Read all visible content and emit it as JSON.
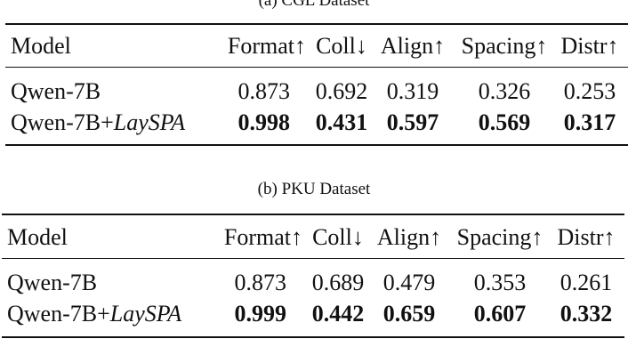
{
  "tables": [
    {
      "caption": "(a) CGL Dataset",
      "headers": [
        "Model",
        "Format↑",
        "Coll↓",
        "Align↑",
        "Spacing↑",
        "Distr↑"
      ],
      "rows": [
        {
          "model": "Qwen-7B",
          "model_suffix": "",
          "values": [
            "0.873",
            "0.692",
            "0.319",
            "0.326",
            "0.253"
          ],
          "bold": false
        },
        {
          "model": "Qwen-7B+",
          "model_suffix": "LaySPA",
          "values": [
            "0.998",
            "0.431",
            "0.597",
            "0.569",
            "0.317"
          ],
          "bold": true
        }
      ]
    },
    {
      "caption": "(b) PKU Dataset",
      "headers": [
        "Model",
        "Format↑",
        "Coll↓",
        "Align↑",
        "Spacing↑",
        "Distr↑"
      ],
      "rows": [
        {
          "model": "Qwen-7B",
          "model_suffix": "",
          "values": [
            "0.873",
            "0.689",
            "0.479",
            "0.353",
            "0.261"
          ],
          "bold": false
        },
        {
          "model": "Qwen-7B+",
          "model_suffix": "LaySPA",
          "values": [
            "0.999",
            "0.442",
            "0.659",
            "0.607",
            "0.332"
          ],
          "bold": true
        }
      ]
    }
  ]
}
